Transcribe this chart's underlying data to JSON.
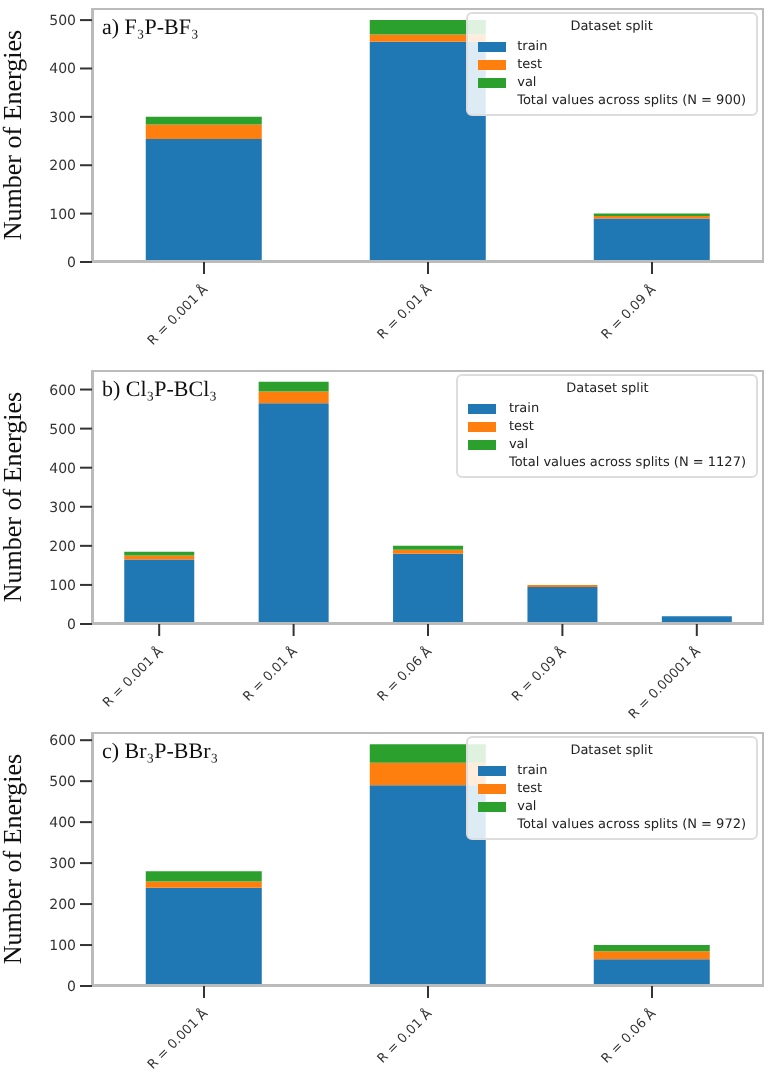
{
  "chart_data": [
    {
      "type": "bar",
      "title": "a) F₃P-BF₃",
      "ylabel": "Number of Energies",
      "legend_title": "Dataset split",
      "annotations": [
        "Total values across splits (N = 900)"
      ],
      "categories": [
        "R = 0.001 Å",
        "R = 0.01 Å",
        "R = 0.09 Å"
      ],
      "stacked": true,
      "legend": "top right",
      "ylim": [
        0,
        525
      ],
      "yticks": [
        0,
        100,
        200,
        300,
        400,
        500
      ],
      "series": [
        {
          "name": "train",
          "color": "#1f77b4",
          "values": [
            254,
            455,
            90
          ]
        },
        {
          "name": "test",
          "color": "#ff7f0e",
          "values": [
            30,
            15,
            5
          ]
        },
        {
          "name": "val",
          "color": "#2ca02c",
          "values": [
            16,
            30,
            5
          ]
        }
      ]
    },
    {
      "type": "bar",
      "title": "b) Cl₃P-BCl₃",
      "ylabel": "Number of Energies",
      "legend_title": "Dataset split",
      "annotations": [
        "Total values across splits (N = 1127)"
      ],
      "categories": [
        "R = 0.001 Å",
        "R = 0.01 Å",
        "R = 0.06 Å",
        "R = 0.09 Å",
        "R = 0.00001 Å"
      ],
      "stacked": true,
      "legend": "top right",
      "ylim": [
        0,
        650
      ],
      "yticks": [
        0,
        100,
        200,
        300,
        400,
        500,
        600
      ],
      "series": [
        {
          "name": "train",
          "color": "#1f77b4",
          "values": [
            165,
            565,
            180,
            95,
            20
          ]
        },
        {
          "name": "test",
          "color": "#ff7f0e",
          "values": [
            10,
            30,
            10,
            5,
            0
          ]
        },
        {
          "name": "val",
          "color": "#2ca02c",
          "values": [
            10,
            25,
            10,
            0,
            0
          ]
        }
      ]
    },
    {
      "type": "bar",
      "title": "c) Br₃P-BBr₃",
      "ylabel": "Number of Energies",
      "legend_title": "Dataset split",
      "annotations": [
        "Total values across splits (N = 972)"
      ],
      "categories": [
        "R = 0.001 Å",
        "R = 0.01 Å",
        "R = 0.06 Å"
      ],
      "stacked": true,
      "legend": "top right",
      "ylim": [
        0,
        620
      ],
      "yticks": [
        0,
        100,
        200,
        300,
        400,
        500,
        600
      ],
      "series": [
        {
          "name": "train",
          "color": "#1f77b4",
          "values": [
            240,
            490,
            65
          ]
        },
        {
          "name": "test",
          "color": "#ff7f0e",
          "values": [
            15,
            55,
            20
          ]
        },
        {
          "name": "val",
          "color": "#2ca02c",
          "values": [
            25,
            45,
            15
          ]
        }
      ]
    }
  ]
}
